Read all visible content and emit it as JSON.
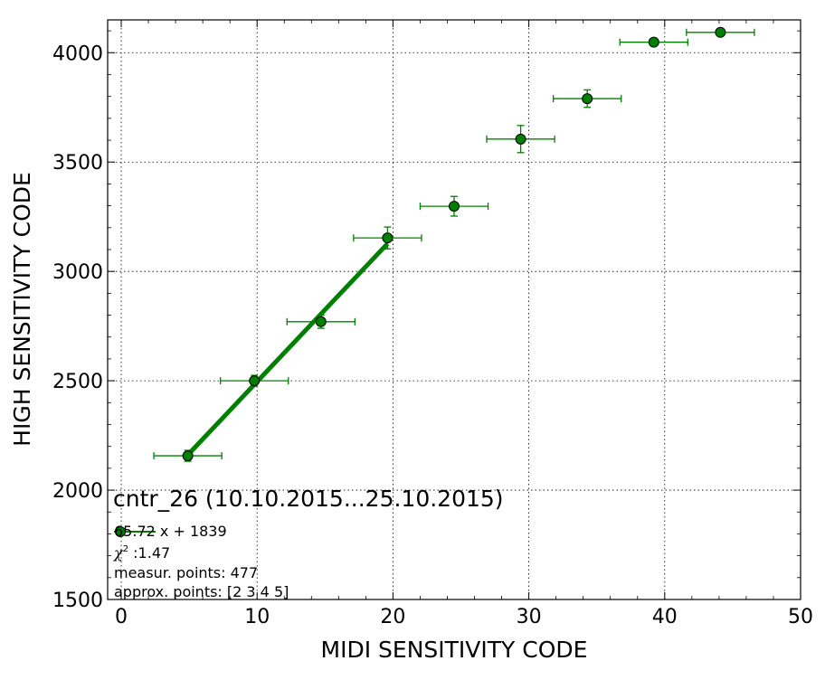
{
  "chart_data": {
    "type": "scatter",
    "xlabel": "MIDI SENSITIVITY CODE",
    "ylabel": "HIGH SENSITIVITY CODE",
    "xlim": [
      -1,
      50
    ],
    "ylim": [
      1500,
      4150
    ],
    "xticks": [
      0,
      10,
      20,
      30,
      40,
      50
    ],
    "yticks": [
      1500,
      2000,
      2500,
      3000,
      3500,
      4000
    ],
    "grid": true,
    "marker_color": "#008000",
    "fit_color": "#008000",
    "points": [
      {
        "x": 4.9,
        "y": 2157,
        "xerr": 2.5,
        "yerr": 25
      },
      {
        "x": 9.8,
        "y": 2500,
        "xerr": 2.5,
        "yerr": 25
      },
      {
        "x": 14.7,
        "y": 2770,
        "xerr": 2.5,
        "yerr": 30
      },
      {
        "x": 19.6,
        "y": 3153,
        "xerr": 2.5,
        "yerr": 50
      },
      {
        "x": 24.5,
        "y": 3298,
        "xerr": 2.5,
        "yerr": 45
      },
      {
        "x": 29.4,
        "y": 3605,
        "xerr": 2.5,
        "yerr": 62
      },
      {
        "x": 34.3,
        "y": 3790,
        "xerr": 2.5,
        "yerr": 40
      },
      {
        "x": 39.2,
        "y": 4048,
        "xerr": 2.5,
        "yerr": 10
      },
      {
        "x": 44.1,
        "y": 4093,
        "xerr": 2.5,
        "yerr": 8
      }
    ],
    "fit": {
      "slope": 65.72,
      "intercept": 1839,
      "x_range": [
        4.9,
        19.6
      ]
    },
    "annotation": {
      "title": "cntr_26 (10.10.2015...25.10.2015)",
      "fit_label": "65.72 x + 1839",
      "chi2_symbol": "χ",
      "chi2_exp": "2",
      "chi2_value": " :1.47",
      "measur_points": "measur. points: 477",
      "approx_points": "approx. points: [2 3 4 5]"
    },
    "legend": "bottom-left"
  }
}
